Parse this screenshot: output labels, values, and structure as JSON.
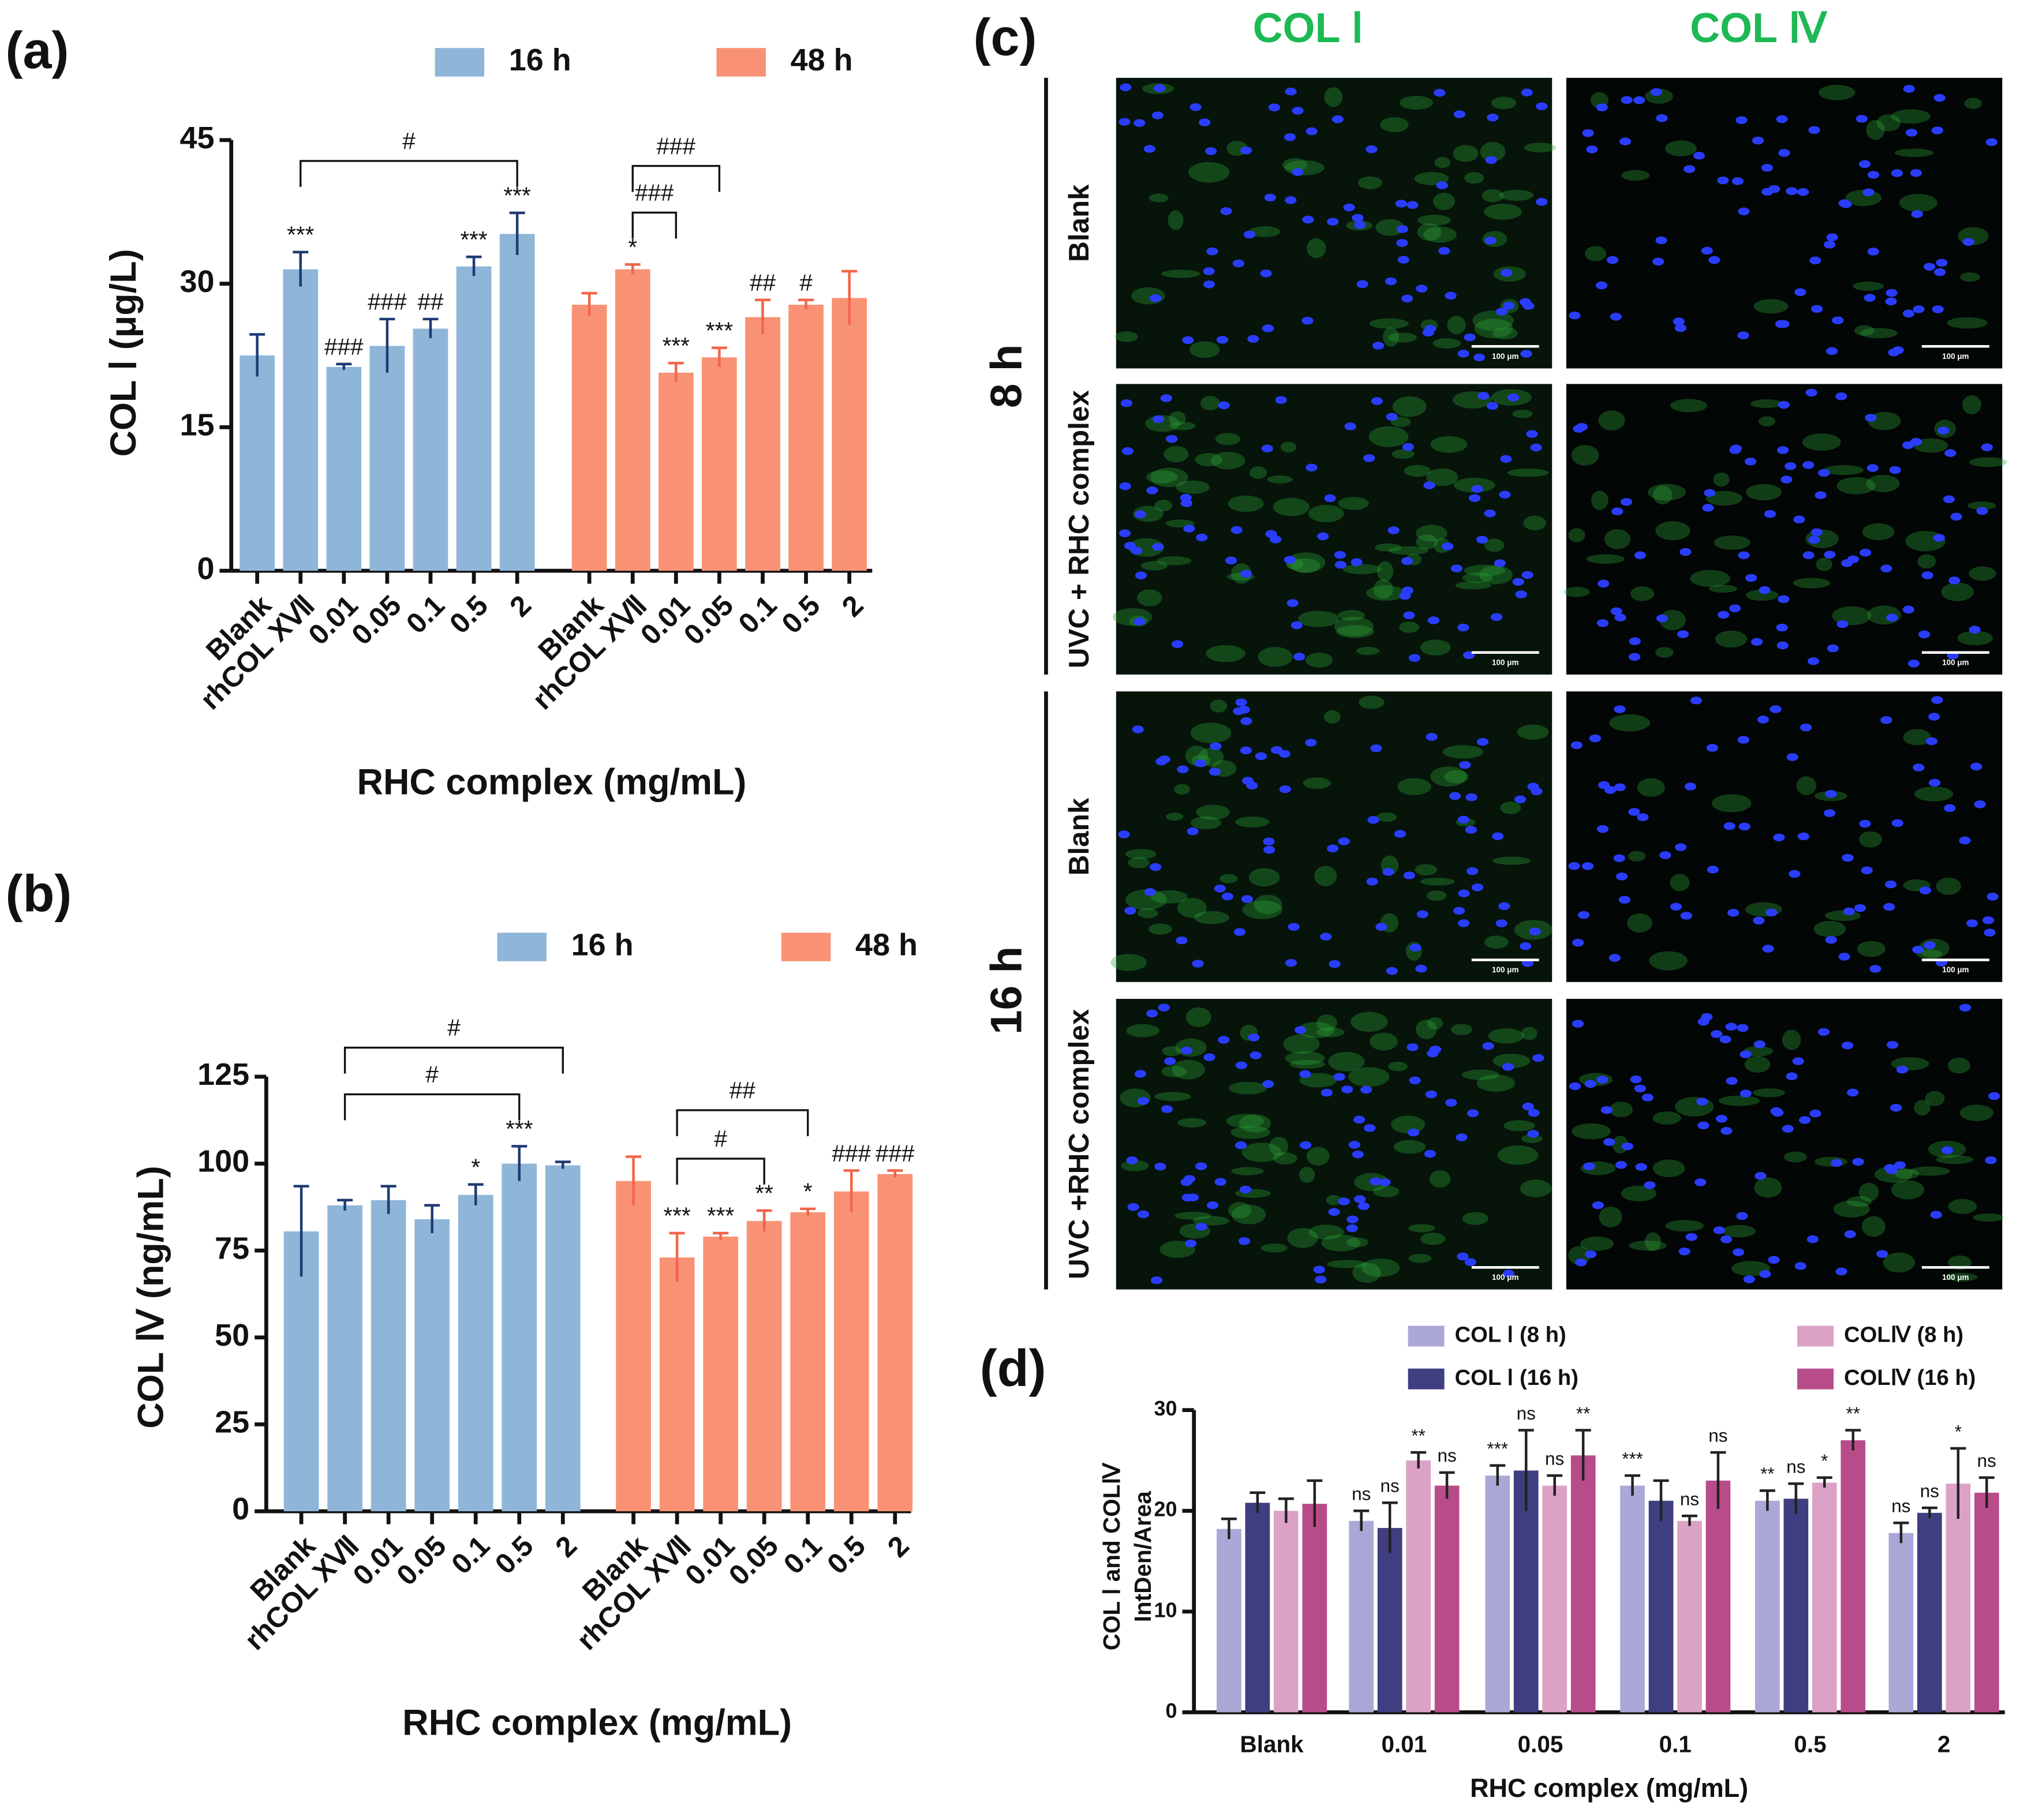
{
  "chart_data": [
    {
      "type": "bar",
      "label": "(a)",
      "xlabel": "RHC complex (mg/mL)",
      "ylabel": "COL Ⅰ (μg/L)",
      "categories": [
        "Blank",
        "rhCOL XⅦ",
        "0.01",
        "0.05",
        "0.1",
        "0.5",
        "2"
      ],
      "ylim": [
        0,
        45
      ],
      "yticks": [
        0,
        15,
        30,
        45
      ],
      "series": [
        {
          "name": "16 h",
          "color": "#8fb6d9",
          "values": [
            22.5,
            31.5,
            21.3,
            23.5,
            25.3,
            31.8,
            35.2
          ],
          "errors": [
            2.2,
            1.8,
            0.3,
            2.8,
            1.0,
            1.0,
            2.2
          ],
          "value_annotations": [
            null,
            "***",
            "###",
            "###",
            "##",
            "***",
            "***"
          ],
          "brackets": [
            {
              "text": "#",
              "from": "rhCOL XⅦ",
              "to": "2"
            }
          ]
        },
        {
          "name": "48 h",
          "color": "#f99274",
          "values": [
            27.8,
            31.5,
            20.7,
            22.3,
            26.5,
            27.8,
            28.5
          ],
          "errors": [
            1.2,
            0.5,
            1.0,
            1.0,
            1.8,
            0.5,
            2.8
          ],
          "value_annotations": [
            null,
            "*",
            "***",
            "***",
            "##",
            "#",
            null
          ],
          "brackets": [
            {
              "text": "###",
              "from": "rhCOL XⅦ",
              "to": "0.01"
            },
            {
              "text": "###",
              "from": "rhCOL XⅦ",
              "to": "0.05"
            }
          ]
        }
      ]
    },
    {
      "type": "bar",
      "label": "(b)",
      "xlabel": "RHC complex (mg/mL)",
      "ylabel": "COL Ⅳ (ng/mL)",
      "categories": [
        "Blank",
        "rhCOL XⅦ",
        "0.01",
        "0.05",
        "0.1",
        "0.5",
        "2"
      ],
      "ylim": [
        0,
        125
      ],
      "yticks": [
        0,
        25,
        50,
        75,
        100,
        125
      ],
      "series": [
        {
          "name": "16 h",
          "color": "#8fb6d9",
          "values": [
            80.5,
            88,
            89.5,
            84,
            91,
            100,
            99.5
          ],
          "errors": [
            13,
            1.5,
            4,
            4,
            3,
            5,
            1
          ],
          "value_annotations": [
            null,
            null,
            null,
            null,
            "*",
            "***",
            null
          ],
          "brackets": [
            {
              "text": "#",
              "from": "rhCOL XⅦ",
              "to": "0.5"
            },
            {
              "text": "#",
              "from": "rhCOL XⅦ",
              "to": "2"
            }
          ]
        },
        {
          "name": "48 h",
          "color": "#f99274",
          "values": [
            95,
            73,
            79,
            83.5,
            86,
            92,
            97
          ],
          "errors": [
            7,
            7,
            1,
            3,
            1,
            6,
            1
          ],
          "value_annotations": [
            null,
            "***",
            "***",
            "**",
            "*",
            "###",
            "###"
          ],
          "brackets": [
            {
              "text": "#",
              "from": "rhCOL XⅦ",
              "to": "0.05"
            },
            {
              "text": "##",
              "from": "rhCOL XⅦ",
              "to": "0.1"
            }
          ]
        }
      ]
    },
    {
      "type": "grouped_bar",
      "label": "(d)",
      "xlabel": "RHC complex (mg/mL)",
      "ylabel": [
        "COL Ⅰ and COLⅣ",
        "IntDen/Area"
      ],
      "categories": [
        "Blank",
        "0.01",
        "0.05",
        "0.1",
        "0.5",
        "2"
      ],
      "ylim": [
        0,
        30
      ],
      "yticks": [
        0,
        10,
        20,
        30
      ],
      "series": [
        {
          "name": "COL Ⅰ (8 h)",
          "color": "#a9a8d6",
          "values": [
            18.2,
            19.0,
            23.5,
            22.5,
            21.0,
            17.8
          ],
          "errors": [
            1,
            1,
            1,
            1,
            1,
            1
          ],
          "value_annotations": [
            null,
            "ns",
            "***",
            "***",
            "**",
            "ns"
          ]
        },
        {
          "name": "COL Ⅰ (16 h)",
          "color": "#3e3e80",
          "values": [
            20.8,
            18.3,
            24.0,
            21.0,
            21.2,
            19.8
          ],
          "errors": [
            1,
            2.5,
            4,
            2,
            1.5,
            0.5
          ],
          "value_annotations": [
            null,
            "ns",
            "ns",
            null,
            "ns",
            "ns"
          ]
        },
        {
          "name": "COLⅣ (8 h)",
          "color": "#dba2c6",
          "values": [
            20.0,
            25.0,
            22.5,
            19.0,
            22.8,
            22.7
          ],
          "errors": [
            1.2,
            0.8,
            1,
            0.5,
            0.5,
            3.5
          ],
          "value_annotations": [
            null,
            "**",
            "ns",
            "ns",
            "*",
            "*"
          ]
        },
        {
          "name": "COLⅣ (16 h)",
          "color": "#b84c8a",
          "values": [
            20.7,
            22.5,
            25.5,
            23.0,
            27.0,
            21.8
          ],
          "errors": [
            2.3,
            1.3,
            2.5,
            2.8,
            1,
            1.5
          ],
          "value_annotations": [
            null,
            "ns",
            "**",
            "ns",
            "**",
            "ns"
          ]
        }
      ]
    }
  ],
  "micrographs": {
    "label": "(c)",
    "columns": [
      "COL Ⅰ",
      "COL Ⅳ"
    ],
    "time_groups": [
      {
        "label": "8 h",
        "rows": [
          "Blank",
          "UVC + RHC complex"
        ]
      },
      {
        "label": "16 h",
        "rows": [
          "Blank",
          "UVC +RHC complex"
        ]
      }
    ],
    "scale_bar": "100 μm"
  }
}
